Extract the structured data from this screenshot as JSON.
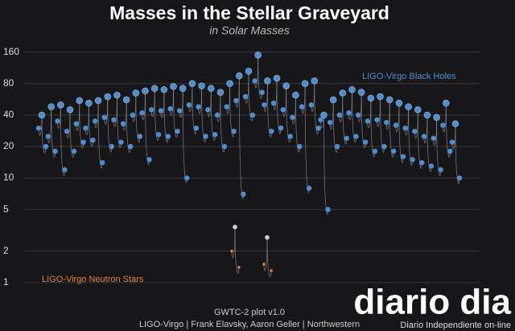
{
  "chart_data": {
    "type": "merger",
    "title": "Masses in the Stellar Graveyard",
    "subtitle": "in Solar Masses",
    "log_scale": true,
    "grid": true,
    "ylim": [
      0.85,
      190
    ],
    "yticks": [
      1,
      2,
      5,
      10,
      20,
      40,
      80,
      160
    ],
    "remnant_color": "#cfcfcf",
    "series": [
      {
        "name": "LIGO-Virgo Black Holes",
        "color": "#4a8fd4",
        "m1": [
          30,
          25,
          35,
          28,
          33,
          30,
          35,
          38,
          36,
          33,
          40,
          42,
          45,
          44,
          46,
          44,
          50,
          48,
          45,
          40,
          48,
          55,
          60,
          85,
          50,
          52,
          45,
          38,
          48,
          50,
          36,
          34,
          40,
          42,
          40,
          35,
          36,
          34,
          32,
          30,
          28,
          25,
          24,
          32,
          22
        ],
        "m2": [
          20,
          18,
          12,
          18,
          22,
          23,
          14,
          20,
          22,
          20,
          25,
          15,
          26,
          25,
          28,
          10,
          30,
          25,
          26,
          20,
          28,
          7,
          40,
          66,
          28,
          30,
          25,
          20,
          8,
          30,
          5,
          20,
          24,
          25,
          22,
          18,
          20,
          18,
          16,
          15,
          14,
          13,
          12,
          18,
          10
        ],
        "final": [
          40,
          48,
          50,
          45,
          55,
          52,
          55,
          60,
          62,
          56,
          65,
          68,
          72,
          70,
          75,
          72,
          80,
          76,
          72,
          66,
          80,
          95,
          105,
          150,
          85,
          90,
          76,
          62,
          80,
          85,
          40,
          56,
          65,
          70,
          66,
          58,
          60,
          56,
          52,
          48,
          45,
          40,
          38,
          52,
          33
        ]
      },
      {
        "name": "LIGO-Virgo Neutron Stars",
        "color": "#e0843a",
        "m1": [
          2.0,
          1.5
        ],
        "m2": [
          1.4,
          1.3
        ],
        "final": [
          3.4,
          2.7
        ]
      }
    ],
    "credit_version": "GWTC-2 plot v1.0",
    "credit_authors": "LIGO-Virgo | Frank Elavsky, Aaron Geller | Northwestern"
  },
  "watermark": {
    "logo": "diario dia",
    "tagline": "Diario Independiente on-line"
  }
}
